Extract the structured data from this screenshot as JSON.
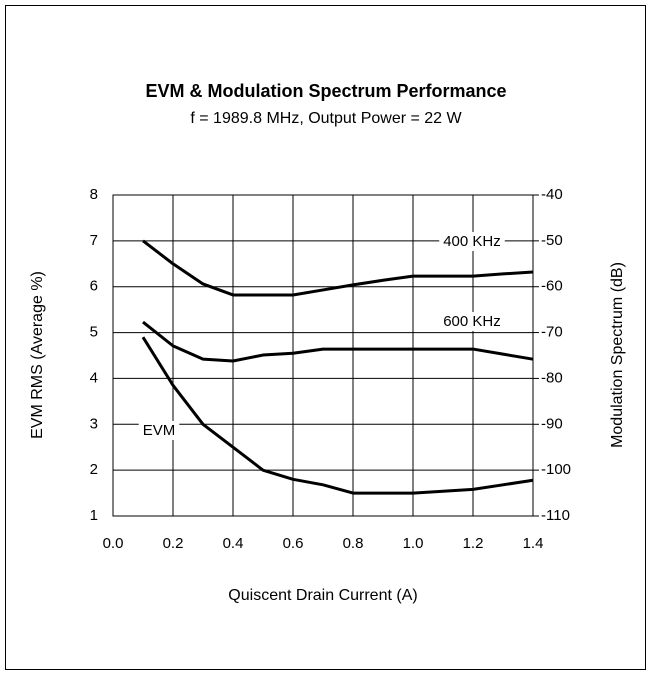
{
  "chart_data": {
    "type": "line",
    "title": "EVM & Modulation Spectrum Performance",
    "subtitle": "f = 1989.8 MHz, Output Power = 22 W",
    "xlabel": "Quiscent Drain Current (A)",
    "ylabel": "EVM RMS (Average %)",
    "y2label": "Modulation Spectrum (dB)",
    "x": [
      0.1,
      0.2,
      0.3,
      0.4,
      0.5,
      0.6,
      0.7,
      0.8,
      0.9,
      1.0,
      1.1,
      1.2,
      1.3,
      1.4
    ],
    "series": [
      {
        "name": "400 KHz",
        "color": "#000000",
        "axis": "y2",
        "values": [
          -50,
          -55,
          -59.4,
          -61.8,
          -61.8,
          -61.8,
          -60.7,
          -59.6,
          -58.6,
          -57.7,
          -57.7,
          -57.7,
          -57.2,
          -56.8
        ]
      },
      {
        "name": "600 KHz",
        "color": "#000000",
        "axis": "y2",
        "values": [
          -67.7,
          -72.9,
          -75.8,
          -76.2,
          -74.9,
          -74.5,
          -73.6,
          -73.6,
          -73.6,
          -73.6,
          -73.6,
          -73.6,
          -74.7,
          -75.8
        ]
      },
      {
        "name": "EVM",
        "color": "#000000",
        "values": [
          4.9,
          3.85,
          3.0,
          2.5,
          2.0,
          1.8,
          1.68,
          1.5,
          1.5,
          1.5,
          1.54,
          1.58,
          1.68,
          1.78
        ]
      }
    ],
    "xlim": [
      0,
      1.4
    ],
    "xticks": [
      {
        "value": 0,
        "label": "0.0"
      },
      0.2,
      0.4,
      0.6,
      0.8,
      {
        "value": 1,
        "label": "1.0"
      },
      1.2,
      1.4
    ],
    "ylim": [
      1,
      8
    ],
    "yticks": [
      1,
      2,
      3,
      4,
      5,
      6,
      7,
      8
    ],
    "y2lim": [
      -110,
      -40
    ],
    "y2ticks": [
      -110,
      -100,
      -90,
      -80,
      -70,
      -60,
      -50,
      -40
    ],
    "grid": true
  }
}
